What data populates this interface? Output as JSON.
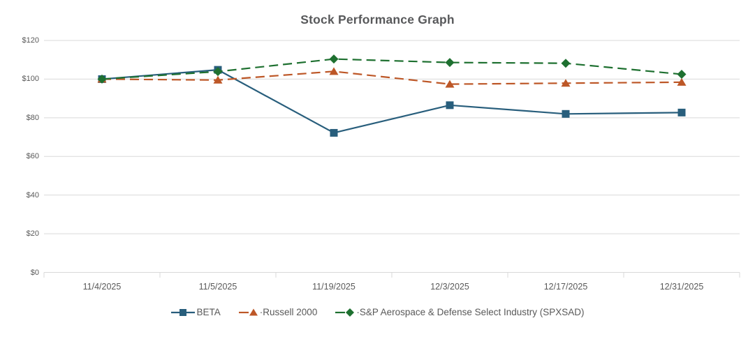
{
  "chart_data": {
    "type": "line",
    "title": "Stock Performance Graph",
    "categories": [
      "11/4/2025",
      "11/5/2025",
      "11/19/2025",
      "12/3/2025",
      "12/17/2025",
      "12/31/2025"
    ],
    "series": [
      {
        "name": "BETA",
        "legend_label": "BETA",
        "color": "#285e7c",
        "marker": "square",
        "line_style": "solid",
        "values": [
          100,
          104.8,
          72.2,
          86.5,
          82.0,
          82.7
        ]
      },
      {
        "name": "Russell 2000",
        "legend_label": "·Russell 2000",
        "color": "#bd5727",
        "marker": "triangle",
        "line_style": "dashed",
        "values": [
          100,
          99.5,
          104.0,
          97.4,
          97.9,
          98.4
        ]
      },
      {
        "name": "S&P Aerospace & Defense Select Industry (SPXSAD)",
        "legend_label": "·S&P Aerospace & Defense Select Industry (SPXSAD)",
        "color": "#1e7030",
        "marker": "diamond",
        "line_style": "dashed",
        "values": [
          100,
          103.9,
          110.4,
          108.6,
          108.2,
          102.5
        ]
      }
    ],
    "y_axis": {
      "min": 0,
      "max": 120,
      "step": 20,
      "tick_labels": [
        "$0",
        "$20",
        "$40",
        "$60",
        "$80",
        "$100",
        "$120"
      ]
    },
    "x_axis": {
      "tick_labels": [
        "11/4/2025",
        "11/5/2025",
        "11/19/2025",
        "12/3/2025",
        "12/17/2025",
        "12/31/2025"
      ]
    },
    "grid": true,
    "legend_position": "bottom",
    "styles": {
      "grid_color": "#d9d9d9",
      "axis_tick_color": "#d9d9d9",
      "label_color": "#595959",
      "title_color": "#58595b",
      "background": "#ffffff"
    }
  }
}
